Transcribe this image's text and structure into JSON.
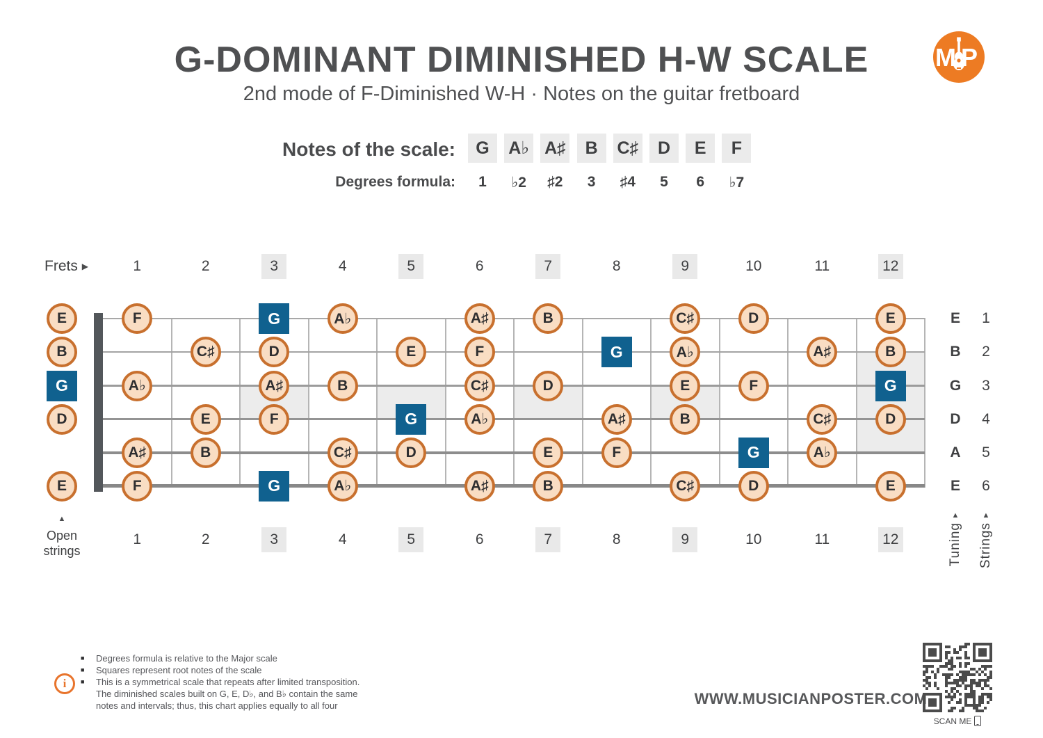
{
  "header": {
    "title": "G-DOMINANT DIMINISHED H-W SCALE",
    "subtitle": "2nd mode of F-Diminished W-H  ·  Notes on the guitar fretboard",
    "logo_text": "MP"
  },
  "scale": {
    "notes_label": "Notes of the scale:",
    "notes": [
      "G",
      "A♭",
      "A♯",
      "B",
      "C♯",
      "D",
      "E",
      "F"
    ],
    "degrees_label": "Degrees formula:",
    "degrees": [
      "1",
      "♭2",
      "♯2",
      "3",
      "♯4",
      "5",
      "6",
      "♭7"
    ]
  },
  "fretboard": {
    "frets_label": "Frets",
    "fret_numbers": [
      "1",
      "2",
      "3",
      "4",
      "5",
      "6",
      "7",
      "8",
      "9",
      "10",
      "11",
      "12"
    ],
    "highlighted_frets": [
      3,
      5,
      7,
      9,
      12
    ],
    "single_inlay_frets": [
      3,
      5,
      7,
      9
    ],
    "double_inlay_fret": 12,
    "open_strings_label_line1": "Open",
    "open_strings_label_line2": "strings",
    "tuning_label": "Tuning",
    "strings_label": "Strings",
    "tuning": [
      "E",
      "B",
      "G",
      "D",
      "A",
      "E"
    ],
    "string_numbers": [
      "1",
      "2",
      "3",
      "4",
      "5",
      "6"
    ],
    "open_notes": [
      {
        "s": 1,
        "n": "E",
        "r": false
      },
      {
        "s": 2,
        "n": "B",
        "r": false
      },
      {
        "s": 3,
        "n": "G",
        "r": true
      },
      {
        "s": 4,
        "n": "D",
        "r": false
      },
      {
        "s": 6,
        "n": "E",
        "r": false
      }
    ],
    "notes": [
      {
        "s": 1,
        "f": 1,
        "n": "F",
        "r": false
      },
      {
        "s": 1,
        "f": 3,
        "n": "G",
        "r": true
      },
      {
        "s": 1,
        "f": 4,
        "n": "A♭",
        "r": false
      },
      {
        "s": 1,
        "f": 6,
        "n": "A♯",
        "r": false
      },
      {
        "s": 1,
        "f": 7,
        "n": "B",
        "r": false
      },
      {
        "s": 1,
        "f": 9,
        "n": "C♯",
        "r": false
      },
      {
        "s": 1,
        "f": 10,
        "n": "D",
        "r": false
      },
      {
        "s": 1,
        "f": 12,
        "n": "E",
        "r": false
      },
      {
        "s": 2,
        "f": 2,
        "n": "C♯",
        "r": false
      },
      {
        "s": 2,
        "f": 3,
        "n": "D",
        "r": false
      },
      {
        "s": 2,
        "f": 5,
        "n": "E",
        "r": false
      },
      {
        "s": 2,
        "f": 6,
        "n": "F",
        "r": false
      },
      {
        "s": 2,
        "f": 8,
        "n": "G",
        "r": true
      },
      {
        "s": 2,
        "f": 9,
        "n": "A♭",
        "r": false
      },
      {
        "s": 2,
        "f": 11,
        "n": "A♯",
        "r": false
      },
      {
        "s": 2,
        "f": 12,
        "n": "B",
        "r": false
      },
      {
        "s": 3,
        "f": 1,
        "n": "A♭",
        "r": false
      },
      {
        "s": 3,
        "f": 3,
        "n": "A♯",
        "r": false
      },
      {
        "s": 3,
        "f": 4,
        "n": "B",
        "r": false
      },
      {
        "s": 3,
        "f": 6,
        "n": "C♯",
        "r": false
      },
      {
        "s": 3,
        "f": 7,
        "n": "D",
        "r": false
      },
      {
        "s": 3,
        "f": 9,
        "n": "E",
        "r": false
      },
      {
        "s": 3,
        "f": 10,
        "n": "F",
        "r": false
      },
      {
        "s": 3,
        "f": 12,
        "n": "G",
        "r": true
      },
      {
        "s": 4,
        "f": 2,
        "n": "E",
        "r": false
      },
      {
        "s": 4,
        "f": 3,
        "n": "F",
        "r": false
      },
      {
        "s": 4,
        "f": 5,
        "n": "G",
        "r": true
      },
      {
        "s": 4,
        "f": 6,
        "n": "A♭",
        "r": false
      },
      {
        "s": 4,
        "f": 8,
        "n": "A♯",
        "r": false
      },
      {
        "s": 4,
        "f": 9,
        "n": "B",
        "r": false
      },
      {
        "s": 4,
        "f": 11,
        "n": "C♯",
        "r": false
      },
      {
        "s": 4,
        "f": 12,
        "n": "D",
        "r": false
      },
      {
        "s": 5,
        "f": 1,
        "n": "A♯",
        "r": false
      },
      {
        "s": 5,
        "f": 2,
        "n": "B",
        "r": false
      },
      {
        "s": 5,
        "f": 4,
        "n": "C♯",
        "r": false
      },
      {
        "s": 5,
        "f": 5,
        "n": "D",
        "r": false
      },
      {
        "s": 5,
        "f": 7,
        "n": "E",
        "r": false
      },
      {
        "s": 5,
        "f": 8,
        "n": "F",
        "r": false
      },
      {
        "s": 5,
        "f": 10,
        "n": "G",
        "r": true
      },
      {
        "s": 5,
        "f": 11,
        "n": "A♭",
        "r": false
      },
      {
        "s": 6,
        "f": 1,
        "n": "F",
        "r": false
      },
      {
        "s": 6,
        "f": 3,
        "n": "G",
        "r": true
      },
      {
        "s": 6,
        "f": 4,
        "n": "A♭",
        "r": false
      },
      {
        "s": 6,
        "f": 6,
        "n": "A♯",
        "r": false
      },
      {
        "s": 6,
        "f": 7,
        "n": "B",
        "r": false
      },
      {
        "s": 6,
        "f": 9,
        "n": "C♯",
        "r": false
      },
      {
        "s": 6,
        "f": 10,
        "n": "D",
        "r": false
      },
      {
        "s": 6,
        "f": 12,
        "n": "E",
        "r": false
      }
    ]
  },
  "icons": {
    "up_arrow": "▲",
    "right_arrow": "▶",
    "bullet": "■"
  },
  "colors": {
    "root_blue": "#10618f",
    "circle_border": "#c8702e",
    "circle_fill": "#f9ddc3",
    "accent_orange": "#e8742c",
    "logo_orange": "#ed7b23"
  },
  "footer": {
    "info_notes": [
      "Degrees formula is relative to the Major scale",
      "Squares represent root notes of the scale",
      "This is a symmetrical scale that repeats after limited transposition. The diminished scales built on G, E, D♭, and B♭ contain the same notes and intervals; thus, this chart applies equally to all four"
    ],
    "website": "WWW.MUSICIANPOSTER.COM",
    "scan_label": "SCAN ME"
  }
}
